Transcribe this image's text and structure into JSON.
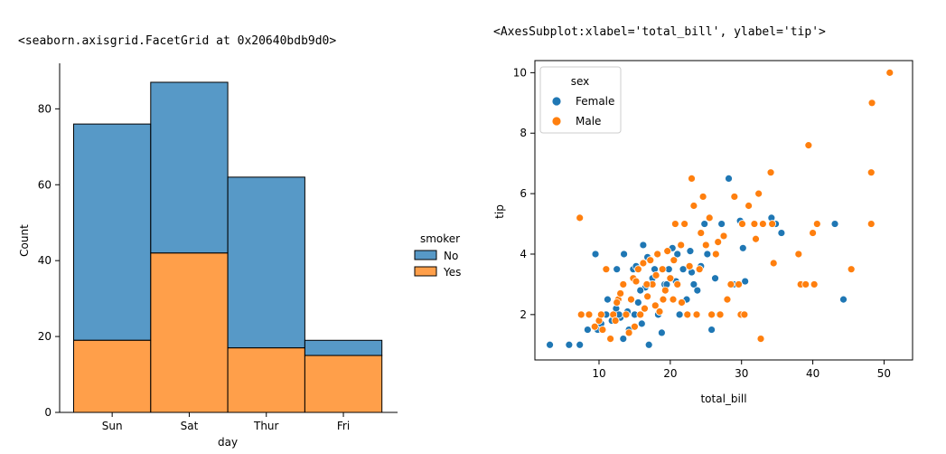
{
  "outputs": {
    "left_repr": "<seaborn.axisgrid.FacetGrid at 0x20640bdb9d0>",
    "right_repr": "<AxesSubplot:xlabel='total_bill', ylabel='tip'>"
  },
  "colors": {
    "blue": "#1f77b4",
    "orange": "#ff7f0e"
  },
  "chart_data": [
    {
      "type": "bar",
      "stacked": true,
      "xlabel": "day",
      "ylabel": "Count",
      "categories": [
        "Sun",
        "Sat",
        "Thur",
        "Fri"
      ],
      "ylim": [
        0,
        92
      ],
      "yticks": [
        0,
        20,
        40,
        60,
        80
      ],
      "legend_title": "smoker",
      "legend_placement": "right",
      "series": [
        {
          "name": "No",
          "values": [
            57,
            45,
            45,
            4
          ],
          "totals": [
            76,
            87,
            62,
            19
          ]
        },
        {
          "name": "Yes",
          "values": [
            19,
            42,
            17,
            15
          ]
        }
      ]
    },
    {
      "type": "scatter",
      "xlabel": "total_bill",
      "ylabel": "tip",
      "xlim": [
        1,
        54
      ],
      "ylim": [
        0.5,
        10.4
      ],
      "xticks": [
        10,
        20,
        30,
        40,
        50
      ],
      "yticks": [
        2,
        4,
        6,
        8,
        10
      ],
      "legend_title": "sex",
      "legend_placement": "upper-left",
      "series": [
        {
          "name": "Female",
          "points": [
            [
              3.1,
              1.0
            ],
            [
              5.8,
              1.0
            ],
            [
              7.3,
              1.0
            ],
            [
              8.4,
              1.5
            ],
            [
              9.8,
              1.5
            ],
            [
              10.3,
              1.7
            ],
            [
              11.0,
              2.0
            ],
            [
              11.8,
              1.8
            ],
            [
              12.4,
              2.2
            ],
            [
              13.0,
              1.9
            ],
            [
              13.4,
              1.2
            ],
            [
              14.0,
              2.1
            ],
            [
              14.5,
              2.5
            ],
            [
              15.0,
              2.0
            ],
            [
              15.5,
              2.4
            ],
            [
              16.0,
              1.7
            ],
            [
              16.5,
              2.9
            ],
            [
              17.0,
              1.0
            ],
            [
              17.3,
              3.0
            ],
            [
              17.8,
              3.5
            ],
            [
              18.3,
              2.0
            ],
            [
              18.8,
              1.4
            ],
            [
              19.2,
              3.0
            ],
            [
              19.8,
              3.5
            ],
            [
              20.3,
              4.2
            ],
            [
              20.8,
              3.1
            ],
            [
              21.3,
              2.0
            ],
            [
              21.8,
              3.5
            ],
            [
              22.3,
              2.5
            ],
            [
              22.8,
              4.1
            ],
            [
              23.3,
              3.0
            ],
            [
              23.8,
              2.8
            ],
            [
              24.3,
              3.6
            ],
            [
              24.8,
              5.0
            ],
            [
              25.2,
              4.0
            ],
            [
              25.8,
              1.5
            ],
            [
              26.3,
              3.2
            ],
            [
              26.9,
              2.0
            ],
            [
              27.2,
              5.0
            ],
            [
              28.2,
              6.5
            ],
            [
              28.9,
              3.0
            ],
            [
              29.8,
              5.1
            ],
            [
              30.2,
              4.2
            ],
            [
              30.5,
              3.1
            ],
            [
              34.2,
              5.2
            ],
            [
              34.8,
              5.0
            ],
            [
              35.6,
              4.7
            ],
            [
              43.1,
              5.0
            ],
            [
              44.3,
              2.5
            ],
            [
              9.5,
              4.0
            ],
            [
              12.5,
              3.5
            ],
            [
              13.5,
              4.0
            ],
            [
              14.8,
              3.5
            ],
            [
              16.2,
              4.3
            ],
            [
              17.5,
              3.2
            ],
            [
              19.5,
              3.0
            ],
            [
              11.2,
              2.5
            ],
            [
              12.8,
              2.0
            ],
            [
              14.2,
              1.5
            ],
            [
              15.8,
              2.8
            ],
            [
              21.0,
              4.0
            ],
            [
              23.0,
              3.4
            ],
            [
              15.2,
              3.6
            ],
            [
              16.8,
              3.9
            ]
          ]
        },
        {
          "name": "Male",
          "points": [
            [
              7.3,
              5.2
            ],
            [
              7.5,
              2.0
            ],
            [
              8.6,
              2.0
            ],
            [
              9.4,
              1.6
            ],
            [
              10.0,
              1.8
            ],
            [
              10.3,
              2.0
            ],
            [
              10.5,
              1.5
            ],
            [
              11.0,
              3.5
            ],
            [
              11.6,
              1.2
            ],
            [
              12.0,
              2.0
            ],
            [
              12.3,
              1.8
            ],
            [
              12.7,
              2.5
            ],
            [
              13.0,
              2.7
            ],
            [
              13.4,
              3.0
            ],
            [
              13.8,
              2.0
            ],
            [
              14.2,
              1.4
            ],
            [
              14.5,
              2.5
            ],
            [
              14.8,
              3.2
            ],
            [
              15.0,
              1.6
            ],
            [
              15.5,
              3.5
            ],
            [
              15.8,
              2.0
            ],
            [
              16.2,
              3.7
            ],
            [
              16.4,
              2.2
            ],
            [
              16.8,
              2.6
            ],
            [
              17.2,
              3.8
            ],
            [
              17.5,
              3.0
            ],
            [
              17.9,
              2.3
            ],
            [
              18.2,
              4.0
            ],
            [
              18.5,
              2.1
            ],
            [
              18.9,
              3.5
            ],
            [
              19.3,
              2.8
            ],
            [
              19.6,
              4.1
            ],
            [
              20.0,
              3.2
            ],
            [
              20.4,
              2.5
            ],
            [
              20.7,
              5.0
            ],
            [
              21.0,
              3.0
            ],
            [
              21.5,
              4.3
            ],
            [
              22.0,
              5.0
            ],
            [
              22.4,
              2.0
            ],
            [
              22.7,
              3.6
            ],
            [
              23.0,
              6.5
            ],
            [
              23.3,
              5.6
            ],
            [
              23.7,
              2.0
            ],
            [
              24.1,
              3.5
            ],
            [
              24.6,
              5.9
            ],
            [
              25.0,
              4.3
            ],
            [
              25.5,
              5.2
            ],
            [
              25.8,
              2.0
            ],
            [
              26.4,
              4.0
            ],
            [
              27.0,
              2.0
            ],
            [
              27.5,
              4.6
            ],
            [
              28.0,
              2.5
            ],
            [
              28.5,
              3.0
            ],
            [
              29.0,
              5.9
            ],
            [
              29.6,
              3.0
            ],
            [
              29.9,
              2.0
            ],
            [
              30.1,
              5.0
            ],
            [
              30.4,
              2.0
            ],
            [
              31.0,
              5.6
            ],
            [
              31.8,
              5.0
            ],
            [
              32.0,
              4.5
            ],
            [
              32.4,
              6.0
            ],
            [
              32.7,
              1.2
            ],
            [
              33.0,
              5.0
            ],
            [
              34.1,
              6.7
            ],
            [
              34.5,
              3.7
            ],
            [
              34.3,
              5.0
            ],
            [
              38.0,
              4.0
            ],
            [
              38.3,
              3.0
            ],
            [
              39.0,
              3.0
            ],
            [
              39.4,
              7.6
            ],
            [
              40.2,
              3.0
            ],
            [
              40.0,
              4.7
            ],
            [
              40.6,
              5.0
            ],
            [
              45.4,
              3.5
            ],
            [
              48.2,
              5.0
            ],
            [
              48.2,
              6.7
            ],
            [
              48.3,
              9.0
            ],
            [
              50.8,
              10.0
            ],
            [
              15.2,
              3.1
            ],
            [
              18.0,
              3.3
            ],
            [
              19.0,
              2.5
            ],
            [
              20.5,
              3.8
            ],
            [
              21.6,
              2.4
            ],
            [
              24.3,
              4.7
            ],
            [
              26.7,
              4.4
            ],
            [
              12.5,
              2.4
            ],
            [
              16.7,
              3.0
            ]
          ]
        }
      ]
    }
  ]
}
